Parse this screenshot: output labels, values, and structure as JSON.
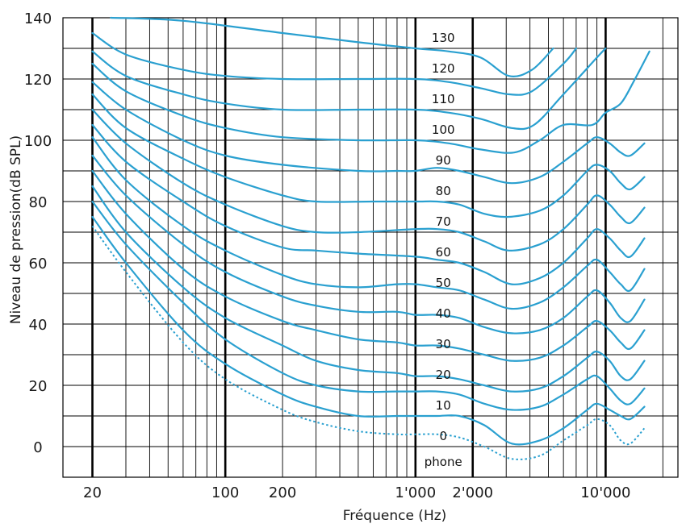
{
  "chart_data": {
    "type": "line",
    "title": "",
    "xlabel": "Fréquence (Hz)",
    "ylabel": "Niveau de pression(dB SPL)",
    "x_scale": "log",
    "xlim": [
      14,
      24000
    ],
    "ylim": [
      -10,
      140
    ],
    "grid": true,
    "curve_color": "#2aa0d0",
    "y_ticks": [
      {
        "value": 0,
        "label": "0"
      },
      {
        "value": 20,
        "label": "20"
      },
      {
        "value": 40,
        "label": "40"
      },
      {
        "value": 60,
        "label": "60"
      },
      {
        "value": 80,
        "label": "80"
      },
      {
        "value": 100,
        "label": "100"
      },
      {
        "value": 120,
        "label": "120"
      },
      {
        "value": 140,
        "label": "140"
      }
    ],
    "x_ticks": [
      {
        "value": 20,
        "label": "20"
      },
      {
        "value": 100,
        "label": "100"
      },
      {
        "value": 200,
        "label": "200"
      },
      {
        "value": 1000,
        "label": "1'000"
      },
      {
        "value": 2000,
        "label": "2'000"
      },
      {
        "value": 10000,
        "label": "10'000"
      }
    ],
    "unit_label": "phone",
    "series": [
      {
        "name": "130",
        "x": [
          25,
          60,
          200,
          500,
          1000,
          1500,
          2200,
          3100,
          4100,
          5300
        ],
        "y": [
          140,
          139,
          135,
          132,
          130,
          129,
          127,
          121,
          123,
          130
        ]
      },
      {
        "name": "120",
        "x": [
          20,
          30,
          60,
          100,
          200,
          500,
          1000,
          1500,
          2200,
          3100,
          4100,
          6000,
          7000
        ],
        "y": [
          135,
          128,
          123,
          121,
          120,
          120,
          120,
          119,
          117,
          115,
          116,
          125,
          130
        ]
      },
      {
        "name": "110",
        "x": [
          20,
          30,
          60,
          100,
          200,
          500,
          1000,
          1500,
          2200,
          3200,
          4200,
          6000,
          9000,
          10000
        ],
        "y": [
          129,
          121,
          115,
          112,
          110,
          110,
          110,
          109,
          107,
          104,
          105,
          115,
          127,
          130
        ]
      },
      {
        "name": "100",
        "x": [
          20,
          30,
          60,
          100,
          200,
          500,
          1000,
          1500,
          2200,
          3300,
          4500,
          6000,
          8500,
          10000,
          12000,
          14000,
          17000
        ],
        "y": [
          125,
          116,
          108,
          104,
          101,
          100,
          100,
          99,
          97,
          96,
          100,
          105,
          105,
          109,
          112,
          119,
          129
        ]
      },
      {
        "name": "90",
        "x": [
          20,
          30,
          60,
          100,
          200,
          500,
          800,
          1000,
          1300,
          1700,
          2300,
          3200,
          4500,
          6000,
          8000,
          9000,
          10500,
          12000,
          13500,
          16000
        ],
        "y": [
          119,
          110,
          100,
          95,
          92,
          90,
          90,
          90,
          91,
          90,
          88,
          86,
          88,
          93,
          99,
          101,
          99,
          96,
          95,
          99
        ]
      },
      {
        "name": "80",
        "x": [
          20,
          30,
          60,
          100,
          200,
          300,
          600,
          1000,
          1300,
          1700,
          2300,
          3100,
          4500,
          6000,
          8000,
          9000,
          10500,
          12000,
          13500,
          16000
        ],
        "y": [
          115,
          104,
          94,
          88,
          82,
          80,
          80,
          80,
          80,
          79,
          76,
          75,
          77,
          82,
          90,
          92,
          90,
          86,
          84,
          88
        ]
      },
      {
        "name": "70",
        "x": [
          20,
          30,
          60,
          100,
          200,
          300,
          500,
          1000,
          1300,
          1700,
          2300,
          3100,
          4500,
          6000,
          8000,
          9000,
          10500,
          12000,
          13500,
          16000
        ],
        "y": [
          110,
          99,
          86,
          79,
          72,
          70,
          70,
          71,
          71,
          70,
          67,
          64,
          66,
          71,
          79,
          82,
          79,
          75,
          73,
          78
        ]
      },
      {
        "name": "60",
        "x": [
          20,
          30,
          60,
          100,
          200,
          300,
          500,
          1000,
          1300,
          1700,
          2300,
          3200,
          4500,
          6000,
          8000,
          9000,
          10500,
          12000,
          13500,
          16000
        ],
        "y": [
          105,
          93,
          80,
          72,
          65,
          64,
          63,
          62,
          61,
          60,
          57,
          53,
          55,
          60,
          68,
          71,
          68,
          64,
          62,
          68
        ]
      },
      {
        "name": "50",
        "x": [
          20,
          30,
          60,
          100,
          200,
          300,
          500,
          800,
          1000,
          1300,
          1700,
          2300,
          3200,
          4500,
          6000,
          8000,
          9000,
          10500,
          12000,
          13500,
          16000
        ],
        "y": [
          101,
          87,
          72,
          64,
          56,
          53,
          52,
          53,
          53,
          52,
          51,
          48,
          45,
          47,
          52,
          59,
          61,
          57,
          53,
          51,
          58
        ]
      },
      {
        "name": "40",
        "x": [
          20,
          30,
          60,
          100,
          200,
          300,
          500,
          800,
          1000,
          1300,
          1700,
          2300,
          3200,
          4500,
          6000,
          8000,
          9000,
          10500,
          12000,
          13500,
          16000
        ],
        "y": [
          95,
          82,
          66,
          57,
          49,
          46,
          44,
          44,
          43,
          43,
          42,
          39,
          37,
          38,
          42,
          49,
          51,
          47,
          42,
          41,
          48
        ]
      },
      {
        "name": "30",
        "x": [
          20,
          30,
          60,
          100,
          200,
          300,
          500,
          800,
          1000,
          1300,
          1700,
          2300,
          3200,
          4500,
          6000,
          8000,
          9000,
          10500,
          12000,
          13500,
          16000
        ],
        "y": [
          90,
          76,
          58,
          49,
          41,
          38,
          35,
          34,
          33,
          33,
          32,
          30,
          28,
          29,
          33,
          39,
          41,
          38,
          34,
          32,
          38
        ]
      },
      {
        "name": "20",
        "x": [
          20,
          30,
          60,
          100,
          200,
          300,
          500,
          800,
          1000,
          1300,
          1700,
          2300,
          3200,
          4500,
          6000,
          8000,
          9000,
          10500,
          12000,
          13500,
          16000
        ],
        "y": [
          85,
          70,
          52,
          42,
          33,
          28,
          25,
          24,
          23,
          23,
          22,
          20,
          18,
          19,
          23,
          29,
          31,
          28,
          23,
          22,
          28
        ]
      },
      {
        "name": "10",
        "x": [
          20,
          30,
          60,
          100,
          200,
          300,
          500,
          800,
          1000,
          1300,
          1700,
          2300,
          3200,
          4500,
          6000,
          8000,
          9000,
          10500,
          12000,
          13500,
          16000
        ],
        "y": [
          80,
          66,
          47,
          35,
          24,
          20,
          18,
          18,
          18,
          18,
          17,
          14,
          12,
          13,
          17,
          22,
          23,
          19,
          15,
          14,
          19
        ]
      },
      {
        "name": "0",
        "x": [
          20,
          30,
          60,
          100,
          200,
          300,
          500,
          800,
          1000,
          1300,
          1700,
          2300,
          3200,
          4500,
          6000,
          8000,
          9000,
          10500,
          12000,
          13500,
          16000
        ],
        "y": [
          75,
          60,
          38,
          27,
          17,
          13,
          10,
          10,
          10,
          10,
          10,
          7,
          1,
          2,
          6,
          12,
          14,
          12,
          10,
          9,
          13
        ]
      }
    ],
    "threshold": {
      "x": [
        20,
        30,
        60,
        100,
        200,
        300,
        500,
        800,
        1000,
        1300,
        1700,
        2300,
        3200,
        4500,
        6000,
        8000,
        9000,
        10500,
        12000,
        13500,
        16000
      ],
      "y": [
        72,
        57,
        34,
        22,
        12,
        8,
        5,
        4,
        4,
        4,
        3,
        0,
        -4,
        -3,
        2,
        7,
        9,
        7,
        2,
        1,
        6
      ]
    }
  }
}
